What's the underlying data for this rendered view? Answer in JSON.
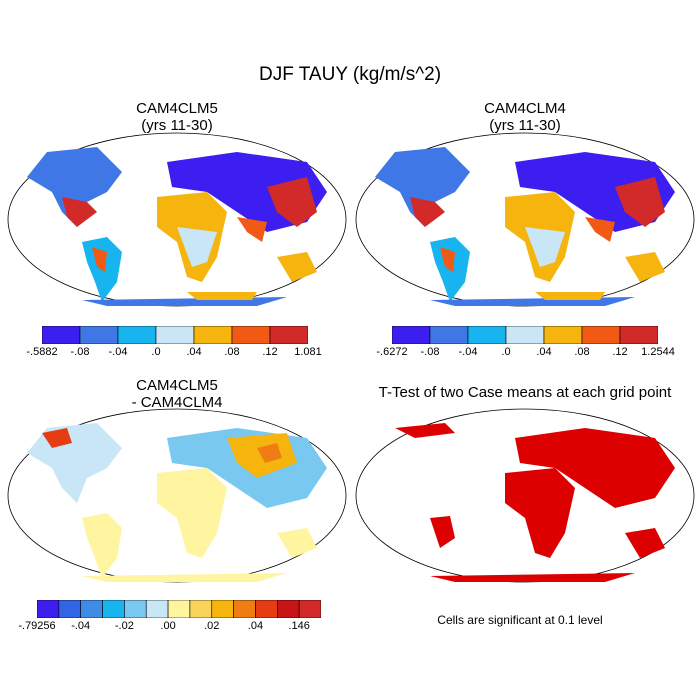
{
  "figure_title": "DJF TAUY (kg/m/s^2)",
  "panels": {
    "top_left": {
      "title": [
        "CAM4CLM5",
        "(yrs 11-30)"
      ]
    },
    "top_right": {
      "title": [
        "CAM4CLM4",
        "(yrs 11-30)"
      ]
    },
    "bottom_left": {
      "title": [
        "CAM4CLM5",
        "- CAM4CLM4"
      ]
    },
    "bottom_right": {
      "title": [
        "T-Test of two Case means at each grid point"
      ]
    }
  },
  "colorbars": {
    "cb1": {
      "labels": [
        "-.5882",
        "-.08",
        "-.04",
        ".0",
        ".04",
        ".08",
        ".12",
        "1.081"
      ],
      "colors": [
        "#3c1ef0",
        "#3f78e6",
        "#17b4f0",
        "#c8e6f5",
        "#f6b40f",
        "#f05a14",
        "#d22a28"
      ]
    },
    "cb2": {
      "labels": [
        "-.6272",
        "-.08",
        "-.04",
        ".0",
        ".04",
        ".08",
        ".12",
        "1.2544"
      ],
      "colors": [
        "#3c1ef0",
        "#3f78e6",
        "#17b4f0",
        "#c8e6f5",
        "#f6b40f",
        "#f05a14",
        "#d22a28"
      ]
    },
    "cb3": {
      "labels": [
        "-.79256",
        "-.04",
        "-.02",
        ".00",
        ".02",
        ".04",
        ".146"
      ],
      "label_positions": [
        0,
        2,
        4,
        6,
        8,
        10,
        12
      ],
      "colors": [
        "#3c1ef0",
        "#3264e6",
        "#3f8ce6",
        "#17b4f0",
        "#78c8f0",
        "#c8e6f5",
        "#fff5a0",
        "#f8d55a",
        "#f6b40f",
        "#f07d14",
        "#e63c14",
        "#c81414",
        "#d22a28"
      ]
    }
  },
  "map_colors": {
    "ocean": "#ffffff",
    "coast": "#000000",
    "significance": "#dd0000"
  },
  "note": "Cells are significant at 0.1 level"
}
